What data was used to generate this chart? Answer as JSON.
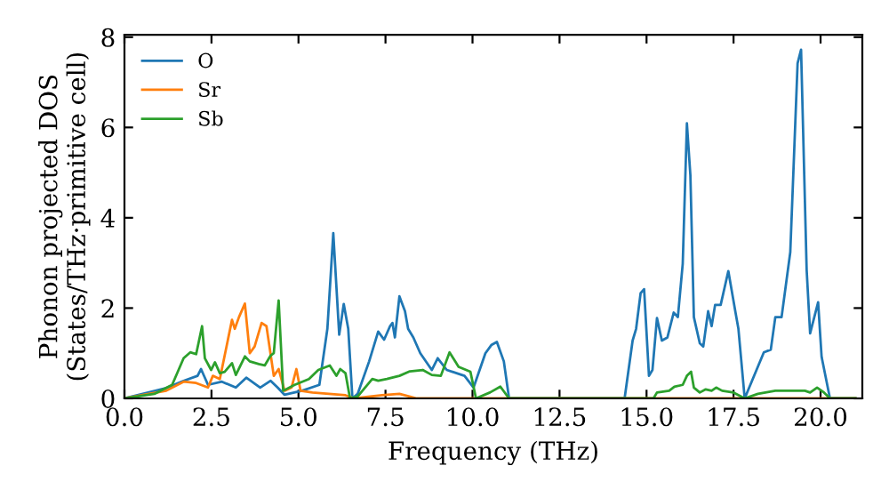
{
  "chart_data": {
    "type": "line",
    "xlabel": "Frequency (THz)",
    "ylabel": "Phonon projected DOS\n(States/THz·primitive cell)",
    "xlim": [
      0,
      21.2
    ],
    "ylim": [
      0,
      8.05
    ],
    "xticks": [
      {
        "value": 0,
        "label": "0.0"
      },
      {
        "value": 2.5,
        "label": "2.5"
      },
      {
        "value": 5,
        "label": "5.0"
      },
      {
        "value": 7.5,
        "label": "7.5"
      },
      {
        "value": 10,
        "label": "10.0"
      },
      {
        "value": 12.5,
        "label": "12.5"
      },
      {
        "value": 15,
        "label": "15.0"
      },
      {
        "value": 17.5,
        "label": "17.5"
      },
      {
        "value": 20,
        "label": "20.0"
      }
    ],
    "yticks": [
      0,
      2,
      4,
      6,
      8
    ],
    "grid": false,
    "legend": "top left",
    "line_style": "solid",
    "marker": "none",
    "series": [
      {
        "name": "O",
        "color": "#1f77b4",
        "x": [
          0,
          1.2,
          1.7,
          2.1,
          2.2,
          2.4,
          2.8,
          3.2,
          3.5,
          3.9,
          4.2,
          4.4,
          4.6,
          5.1,
          5.6,
          5.83,
          6.0,
          6.17,
          6.3,
          6.43,
          6.55,
          6.7,
          7.03,
          7.29,
          7.46,
          7.63,
          7.7,
          7.77,
          7.9,
          8.06,
          8.15,
          8.3,
          8.5,
          8.83,
          9.0,
          9.26,
          9.77,
          10.03,
          10.37,
          10.54,
          10.7,
          10.9,
          11.05,
          14.37,
          14.6,
          14.7,
          14.83,
          14.93,
          15.07,
          15.17,
          15.3,
          15.44,
          15.6,
          15.78,
          15.9,
          16.04,
          16.16,
          16.26,
          16.36,
          16.53,
          16.63,
          16.77,
          16.87,
          16.97,
          17.13,
          17.35,
          17.55,
          17.64,
          17.82,
          18.37,
          18.57,
          18.7,
          18.88,
          19.13,
          19.34,
          19.44,
          19.6,
          19.7,
          19.93,
          20.03,
          20.27,
          21.0
        ],
        "values": [
          0,
          0.23,
          0.39,
          0.5,
          0.65,
          0.3,
          0.37,
          0.24,
          0.46,
          0.24,
          0.39,
          0.24,
          0.08,
          0.17,
          0.3,
          1.54,
          3.66,
          1.41,
          2.09,
          1.54,
          0,
          0.1,
          0.82,
          1.48,
          1.3,
          1.6,
          1.67,
          1.35,
          2.26,
          1.93,
          1.54,
          1.35,
          1.0,
          0.63,
          0.89,
          0.63,
          0.5,
          0.24,
          1.0,
          1.18,
          1.25,
          0.82,
          0,
          0,
          1.28,
          1.54,
          2.33,
          2.42,
          0.5,
          0.63,
          1.78,
          1.28,
          1.35,
          1.9,
          1.8,
          2.98,
          6.09,
          4.94,
          1.8,
          1.22,
          1.15,
          1.93,
          1.6,
          2.07,
          2.07,
          2.82,
          1.93,
          1.54,
          0,
          1.02,
          1.08,
          1.8,
          1.8,
          3.24,
          7.42,
          7.72,
          2.85,
          1.44,
          2.13,
          0.92,
          0,
          0
        ]
      },
      {
        "name": "Sr",
        "color": "#ff7f0e",
        "x": [
          0,
          1.2,
          1.7,
          2.06,
          2.4,
          2.54,
          2.74,
          3.09,
          3.17,
          3.29,
          3.46,
          3.6,
          3.74,
          3.94,
          4.08,
          4.29,
          4.43,
          4.6,
          4.8,
          4.94,
          5.06,
          5.4,
          6.35,
          6.6,
          7.4,
          7.9,
          8.4,
          21.0
        ],
        "values": [
          0,
          0.17,
          0.37,
          0.34,
          0.24,
          0.5,
          0.43,
          1.74,
          1.54,
          1.8,
          2.1,
          1.0,
          1.15,
          1.67,
          1.6,
          0.5,
          0.65,
          0.17,
          0.24,
          0.65,
          0.17,
          0.13,
          0.07,
          0,
          0.07,
          0.1,
          0,
          0
        ]
      },
      {
        "name": "Sb",
        "color": "#2ca02c",
        "x": [
          0,
          0.86,
          1.37,
          1.7,
          1.89,
          2.06,
          2.23,
          2.31,
          2.49,
          2.6,
          2.74,
          2.88,
          3.09,
          3.2,
          3.46,
          3.6,
          3.86,
          4.03,
          4.2,
          4.29,
          4.43,
          4.56,
          4.89,
          5.3,
          5.57,
          5.9,
          6.09,
          6.2,
          6.35,
          6.48,
          6.7,
          7.12,
          7.29,
          7.54,
          7.9,
          8.2,
          8.57,
          8.83,
          9.09,
          9.34,
          9.6,
          9.94,
          10.1,
          10.5,
          10.8,
          11.05,
          15.2,
          15.3,
          15.65,
          15.8,
          16.04,
          16.16,
          16.28,
          16.36,
          16.53,
          16.7,
          16.87,
          17.0,
          17.17,
          17.5,
          17.82,
          18.2,
          18.7,
          19.55,
          19.7,
          19.9,
          20.1,
          20.27,
          21.0
        ],
        "values": [
          0,
          0.1,
          0.3,
          0.89,
          1.02,
          0.98,
          1.6,
          0.89,
          0.63,
          0.8,
          0.56,
          0.59,
          0.78,
          0.52,
          0.93,
          0.82,
          0.76,
          0.73,
          0.95,
          1.0,
          2.17,
          0.17,
          0.3,
          0.43,
          0.63,
          0.73,
          0.5,
          0.65,
          0.56,
          0,
          0.04,
          0.43,
          0.39,
          0.43,
          0.5,
          0.6,
          0.63,
          0.52,
          0.5,
          1.02,
          0.7,
          0.59,
          0,
          0.13,
          0.26,
          0,
          0,
          0.13,
          0.17,
          0.26,
          0.3,
          0.5,
          0.59,
          0.24,
          0.13,
          0.2,
          0.17,
          0.24,
          0.17,
          0.13,
          0,
          0.1,
          0.17,
          0.17,
          0.13,
          0.24,
          0.13,
          0,
          0
        ]
      }
    ]
  }
}
